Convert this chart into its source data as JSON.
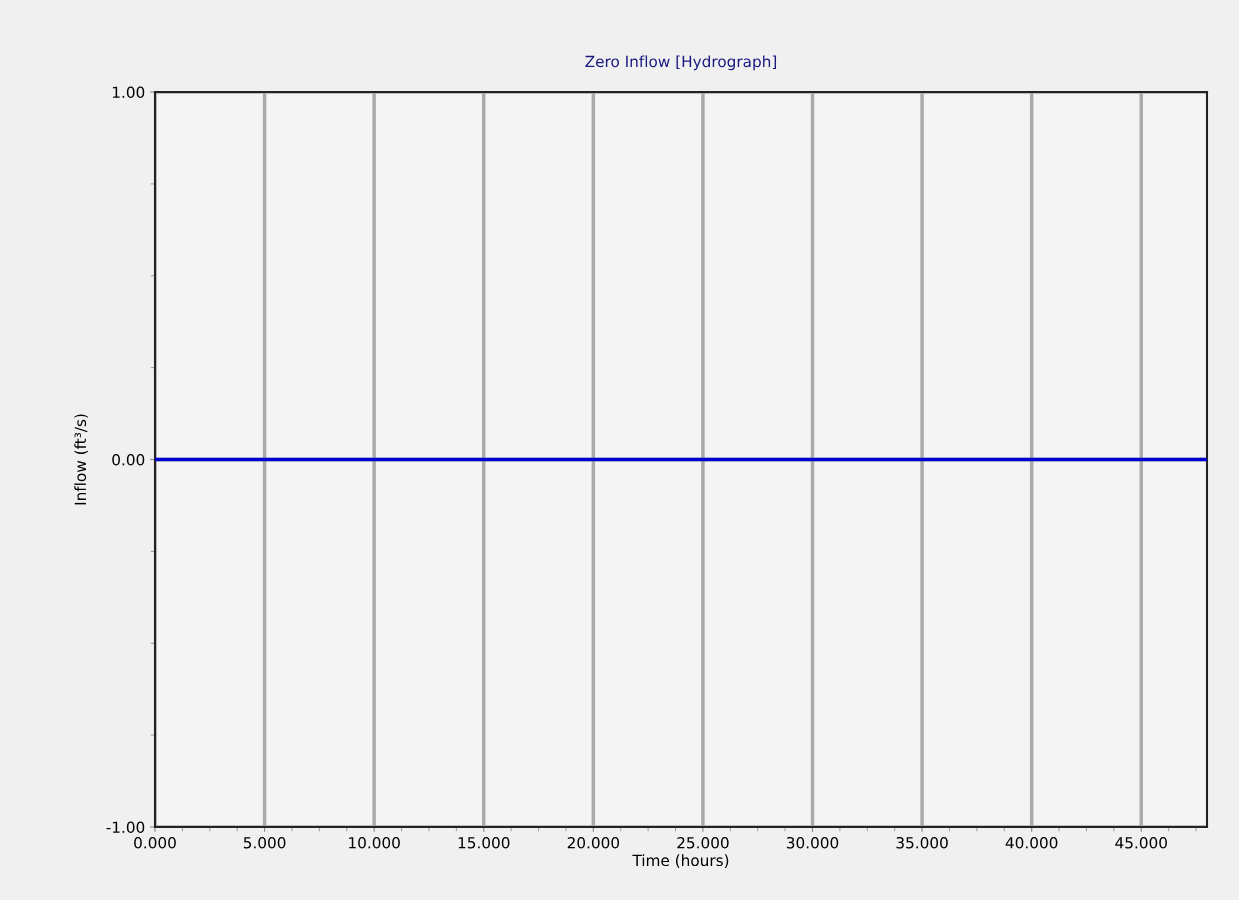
{
  "chart_data": {
    "type": "line",
    "title": "Zero Inflow [Hydrograph]",
    "xlabel": "Time (hours)",
    "ylabel": "Inflow (ft³/s)",
    "x": [
      0,
      48
    ],
    "series": [
      {
        "color": "#0000cc",
        "values": [
          0,
          0
        ]
      }
    ],
    "xlim": [
      0,
      48
    ],
    "ylim": [
      -1,
      1
    ],
    "xticks": [
      {
        "value": 0,
        "label": "0.000"
      },
      {
        "value": 5,
        "label": "5.000"
      },
      {
        "value": 10,
        "label": "10.000"
      },
      {
        "value": 15,
        "label": "15.000"
      },
      {
        "value": 20,
        "label": "20.000"
      },
      {
        "value": 25,
        "label": "25.000"
      },
      {
        "value": 30,
        "label": "30.000"
      },
      {
        "value": 35,
        "label": "35.000"
      },
      {
        "value": 40,
        "label": "40.000"
      },
      {
        "value": 45,
        "label": "45.000"
      }
    ],
    "yticks": [
      {
        "value": -1,
        "label": "-1.00"
      },
      {
        "value": 0,
        "label": "0.00"
      },
      {
        "value": 1,
        "label": "1.00"
      }
    ],
    "grid": true,
    "marker": "none",
    "line_style": "solid"
  }
}
